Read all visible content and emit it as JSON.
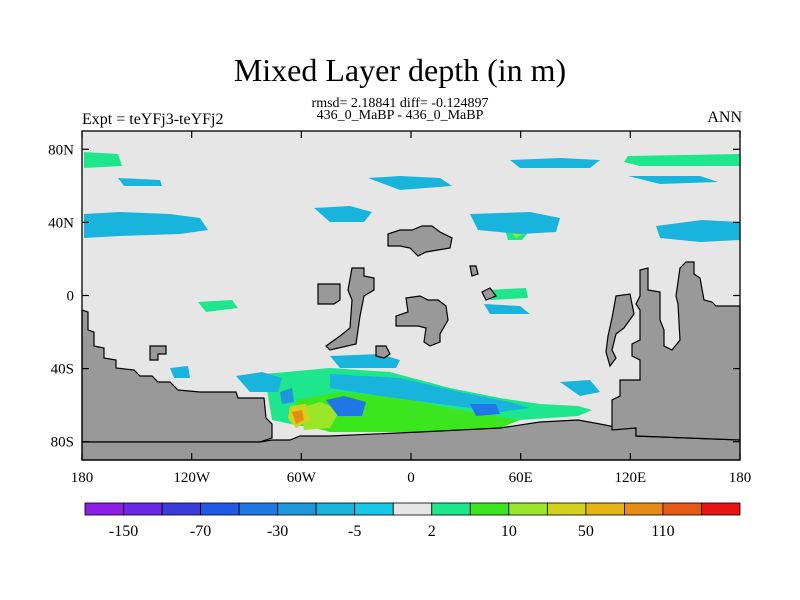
{
  "figure": {
    "title": "Mixed Layer depth (in m)",
    "stats_line": "rmsd= 2.18841  diff= -0.124897",
    "period_line": "436_0_MaBP - 436_0_MaBP",
    "left_label": "Expt = teYFj3-teYFj2",
    "right_label": "ANN"
  },
  "map": {
    "lon_range": [
      -180,
      180
    ],
    "lat_range": [
      -90,
      90
    ],
    "x_ticks": [
      {
        "lon": -180,
        "label": "180"
      },
      {
        "lon": -120,
        "label": "120W"
      },
      {
        "lon": -60,
        "label": "60W"
      },
      {
        "lon": 0,
        "label": "0"
      },
      {
        "lon": 60,
        "label": "60E"
      },
      {
        "lon": 120,
        "label": "120E"
      },
      {
        "lon": 180,
        "label": "180"
      }
    ],
    "y_ticks": [
      {
        "lat": 80,
        "label": "80N"
      },
      {
        "lat": 40,
        "label": "40N"
      },
      {
        "lat": 0,
        "label": "0"
      },
      {
        "lat": -40,
        "label": "40S"
      },
      {
        "lat": -80,
        "label": "80S"
      }
    ],
    "colors": {
      "background_field": "#e6e6e6",
      "land": "#999999"
    }
  },
  "colorbar": {
    "colors": [
      "#8c1ee6",
      "#6a28e6",
      "#3c3cdc",
      "#1e5ae6",
      "#1e78e6",
      "#1e96dc",
      "#19b4dc",
      "#19c8e6",
      "#e6e6e6",
      "#1ee68c",
      "#3ce61e",
      "#9be628",
      "#d2d21e",
      "#e6b414",
      "#e68c14",
      "#e65a14",
      "#e61414"
    ],
    "labels": [
      {
        "after_box": 1,
        "text": "-150"
      },
      {
        "after_box": 3,
        "text": "-70"
      },
      {
        "after_box": 5,
        "text": "-30"
      },
      {
        "after_box": 7,
        "text": "-5"
      },
      {
        "after_box": 9,
        "text": "2"
      },
      {
        "after_box": 11,
        "text": "10"
      },
      {
        "after_box": 13,
        "text": "50"
      },
      {
        "after_box": 15,
        "text": "110"
      }
    ]
  }
}
